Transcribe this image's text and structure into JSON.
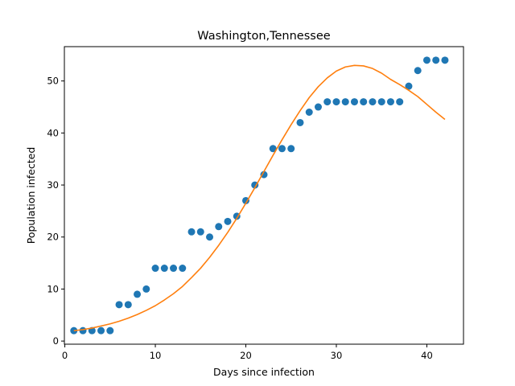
{
  "chart_data": {
    "type": "scatter",
    "title": "Washington,Tennessee",
    "xlabel": "Days since infection",
    "ylabel": "Population infected",
    "xlim": [
      -0.05,
      44.05
    ],
    "ylim": [
      -0.6,
      56.6
    ],
    "xticks": [
      0,
      10,
      20,
      30,
      40
    ],
    "yticks": [
      0,
      10,
      20,
      30,
      40,
      50
    ],
    "grid": false,
    "series": [
      {
        "kind": "scatter",
        "color": "#1f77b4",
        "x": [
          1,
          2,
          3,
          4,
          5,
          6,
          7,
          8,
          9,
          10,
          11,
          12,
          13,
          14,
          15,
          16,
          17,
          18,
          19,
          20,
          21,
          22,
          23,
          24,
          25,
          26,
          27,
          28,
          29,
          30,
          31,
          32,
          33,
          34,
          35,
          36,
          37,
          38,
          39,
          40,
          41,
          42
        ],
        "y": [
          2,
          2,
          2,
          2,
          2,
          7,
          7,
          9,
          10,
          14,
          14,
          14,
          14,
          21,
          21,
          20,
          22,
          23,
          24,
          27,
          30,
          32,
          37,
          37,
          37,
          42,
          44,
          45,
          46,
          46,
          46,
          46,
          46,
          46,
          46,
          46,
          46,
          49,
          52,
          54,
          54,
          54
        ]
      },
      {
        "kind": "line",
        "color": "#ff7f0e",
        "x": [
          1,
          2,
          3,
          4,
          5,
          6,
          7,
          8,
          9,
          10,
          11,
          12,
          13,
          14,
          15,
          16,
          17,
          18,
          19,
          20,
          21,
          22,
          23,
          24,
          25,
          26,
          27,
          28,
          29,
          30,
          31,
          32,
          33,
          34,
          35,
          36,
          37,
          38,
          39,
          40,
          41,
          42
        ],
        "y": [
          2.0,
          2.2,
          2.5,
          2.9,
          3.3,
          3.8,
          4.4,
          5.1,
          5.9,
          6.8,
          7.9,
          9.1,
          10.5,
          12.2,
          14.0,
          16.1,
          18.4,
          20.9,
          23.6,
          26.5,
          29.5,
          32.6,
          35.7,
          38.7,
          41.6,
          44.3,
          46.8,
          48.9,
          50.6,
          51.9,
          52.7,
          53.0,
          52.9,
          52.4,
          51.5,
          50.3,
          49.3,
          48.2,
          47.0,
          45.5,
          44.0,
          42.6
        ]
      }
    ]
  }
}
